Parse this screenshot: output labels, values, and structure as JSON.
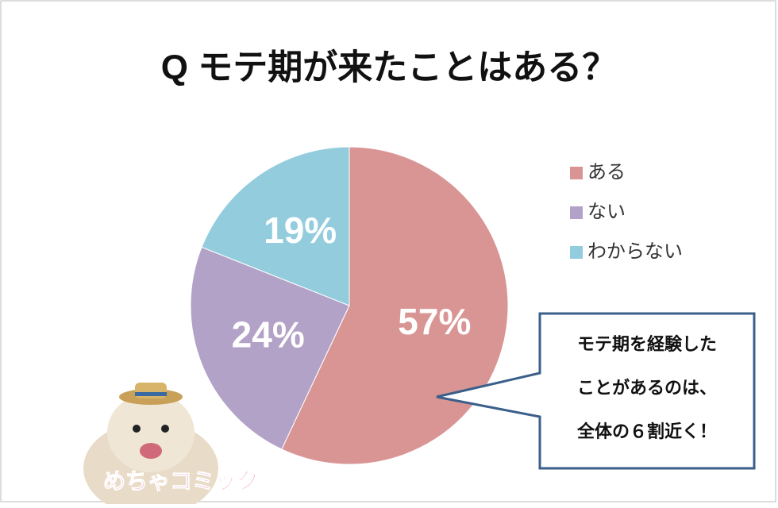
{
  "chart_data": {
    "type": "pie",
    "title": "Q モテ期が来たことはある？",
    "categories": [
      "ある",
      "ない",
      "わからない"
    ],
    "values": [
      57,
      24,
      19
    ],
    "value_labels": [
      "57%",
      "24%",
      "19%"
    ],
    "colors": [
      "#d99594",
      "#b3a2c7",
      "#93cddd"
    ],
    "legend": "right",
    "annotation": [
      "モテ期を経験した",
      "ことがあるのは、",
      "全体の６割近く！"
    ],
    "logo": "めちゃコミック"
  }
}
